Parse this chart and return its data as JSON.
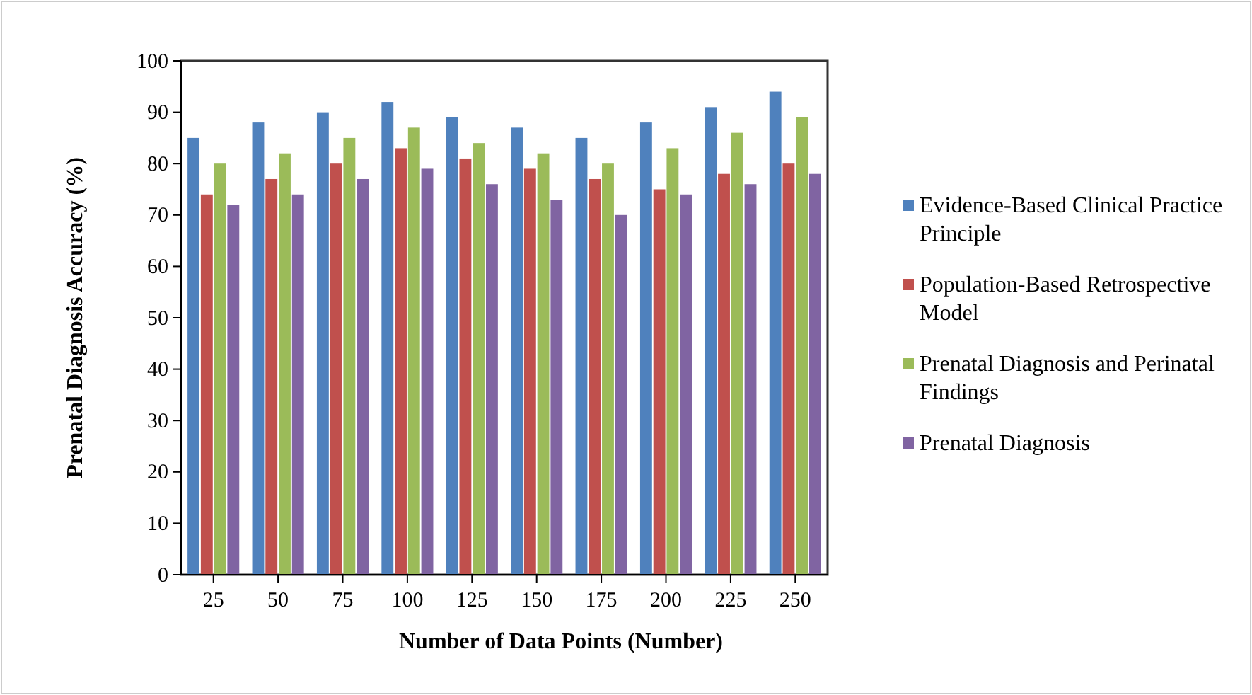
{
  "chart_data": {
    "type": "bar",
    "xlabel": "Number of Data Points (Number)",
    "ylabel": "Prenatal Diagnosis Accuracy (%)",
    "categories": [
      "25",
      "50",
      "75",
      "100",
      "125",
      "150",
      "175",
      "200",
      "225",
      "250"
    ],
    "series": [
      {
        "name": "Evidence-Based Clinical Practice Principle",
        "color": "#4f81bd",
        "values": [
          85,
          88,
          90,
          92,
          89,
          87,
          85,
          88,
          91,
          94
        ]
      },
      {
        "name": "Population-Based Retrospective Model",
        "color": "#c0504d",
        "values": [
          74,
          77,
          80,
          83,
          81,
          79,
          77,
          75,
          78,
          80
        ]
      },
      {
        "name": "Prenatal Diagnosis and Perinatal Findings",
        "color": "#9bbb59",
        "values": [
          80,
          82,
          85,
          87,
          84,
          82,
          80,
          83,
          86,
          89
        ]
      },
      {
        "name": "Prenatal Diagnosis",
        "color": "#8064a2",
        "values": [
          72,
          74,
          77,
          79,
          76,
          73,
          70,
          74,
          76,
          78
        ]
      }
    ],
    "ylim": [
      0,
      100
    ],
    "yticks": [
      0,
      10,
      20,
      30,
      40,
      50,
      60,
      70,
      80,
      90,
      100
    ],
    "legend": "right",
    "grid": false
  }
}
